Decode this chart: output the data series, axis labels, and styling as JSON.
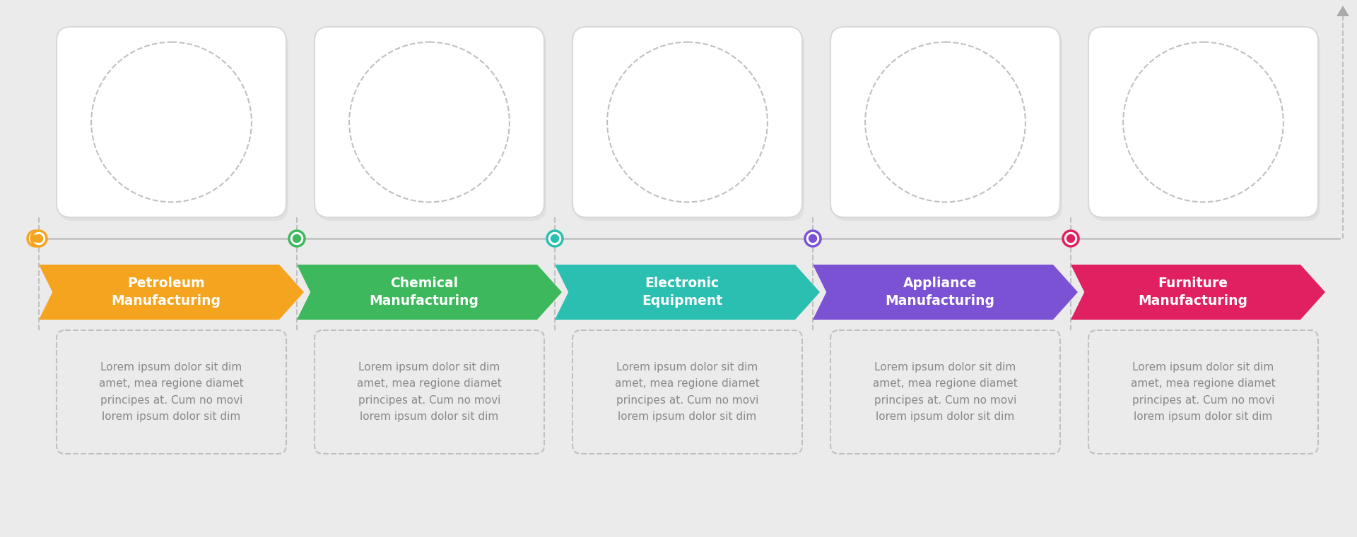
{
  "background_color": "#ebebeb",
  "steps": [
    {
      "title": "Petroleum\nManufacturing",
      "color": "#f5a41f",
      "dot_color": "#f5a41f"
    },
    {
      "title": "Chemical\nManufacturing",
      "color": "#3db85c",
      "dot_color": "#3db85c"
    },
    {
      "title": "Electronic\nEquipment",
      "color": "#2abfb0",
      "dot_color": "#2abfb0"
    },
    {
      "title": "Appliance\nManufacturing",
      "color": "#7b52d3",
      "dot_color": "#7b52d3"
    },
    {
      "title": "Furniture\nManufacturing",
      "color": "#e02060",
      "dot_color": "#e02060"
    }
  ],
  "lorem_text": "Lorem ipsum dolor sit dim\namet, mea regione diamet\nprincipes at. Cum no movi\nlorem ipsum dolor sit dim",
  "card_bg": "#ffffff",
  "timeline_line_color": "#c0c0c0",
  "card_border": "#d8d8d8",
  "dashed_color": "#c0c0c0",
  "text_color": "#888888"
}
